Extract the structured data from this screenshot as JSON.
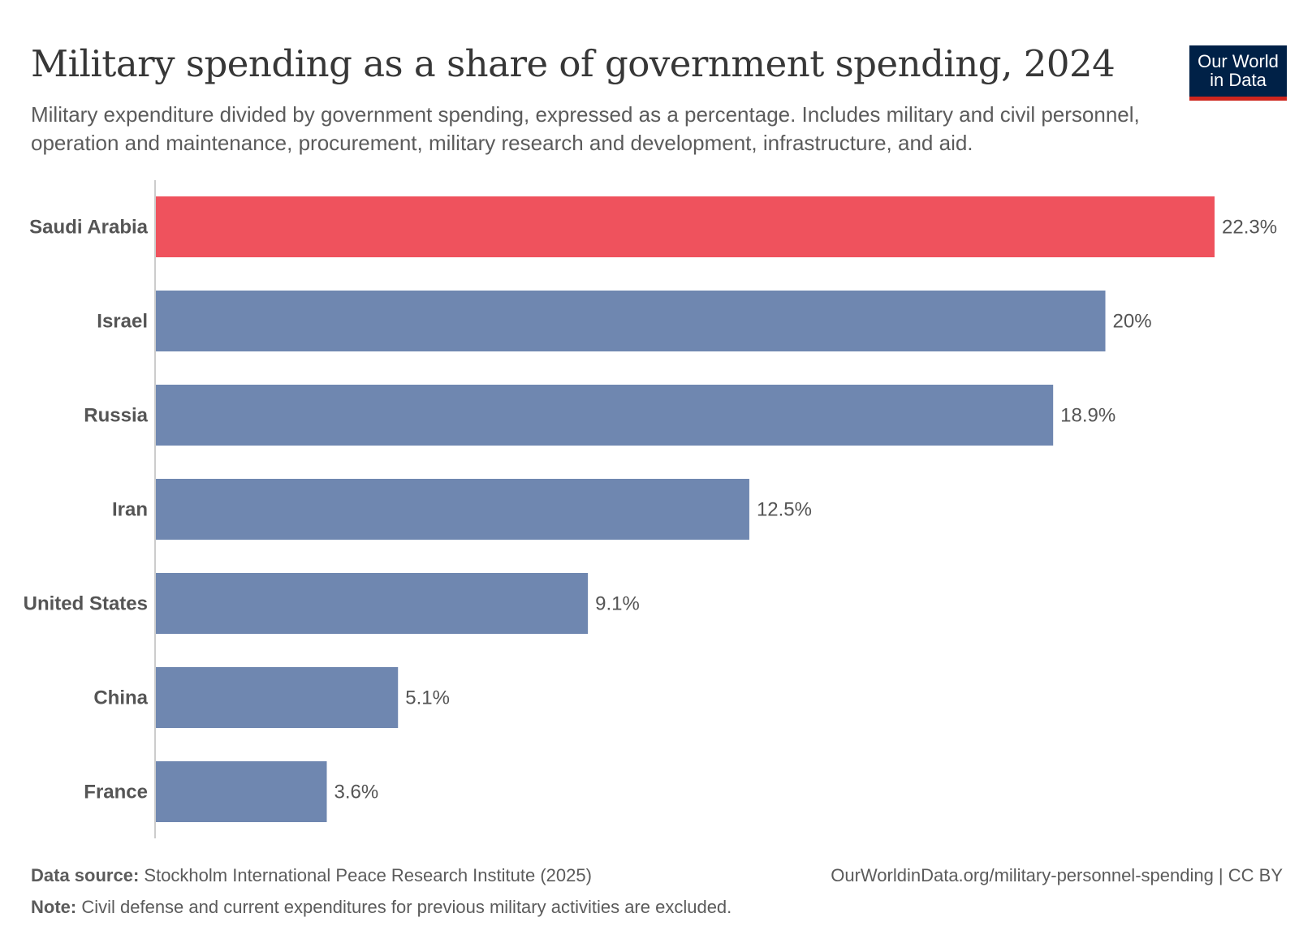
{
  "header": {
    "title": "Military spending as a share of government spending, 2024",
    "subtitle": "Military expenditure divided by government spending, expressed as a percentage. Includes military and civil personnel, operation and maintenance, procurement, military research and development, infrastructure, and aid.",
    "logo": "Our World in Data"
  },
  "footer": {
    "source_label": "Data source:",
    "source": "Stockholm International Peace Research Institute (2025)",
    "url": "OurWorldinData.org/military-personnel-spending | CC BY",
    "note_label": "Note:",
    "note": "Civil defense and current expenditures for previous military activities are excluded."
  },
  "chart_data": {
    "type": "bar",
    "orientation": "horizontal",
    "title": "Military spending as a share of government spending, 2024",
    "categories": [
      "Saudi Arabia",
      "Israel",
      "Russia",
      "Iran",
      "United States",
      "China",
      "France"
    ],
    "values": [
      22.3,
      20,
      18.9,
      12.5,
      9.1,
      5.1,
      3.6
    ],
    "labels": [
      "22.3%",
      "20%",
      "18.9%",
      "12.5%",
      "9.1%",
      "5.1%",
      "3.6%"
    ],
    "colors": [
      "#ef525d",
      "#6f87b0",
      "#6f87b0",
      "#6f87b0",
      "#6f87b0",
      "#6f87b0",
      "#6f87b0"
    ],
    "xlabel": "",
    "ylabel": "",
    "unit": "%",
    "xlim": [
      0,
      22.3
    ],
    "grid": false
  }
}
